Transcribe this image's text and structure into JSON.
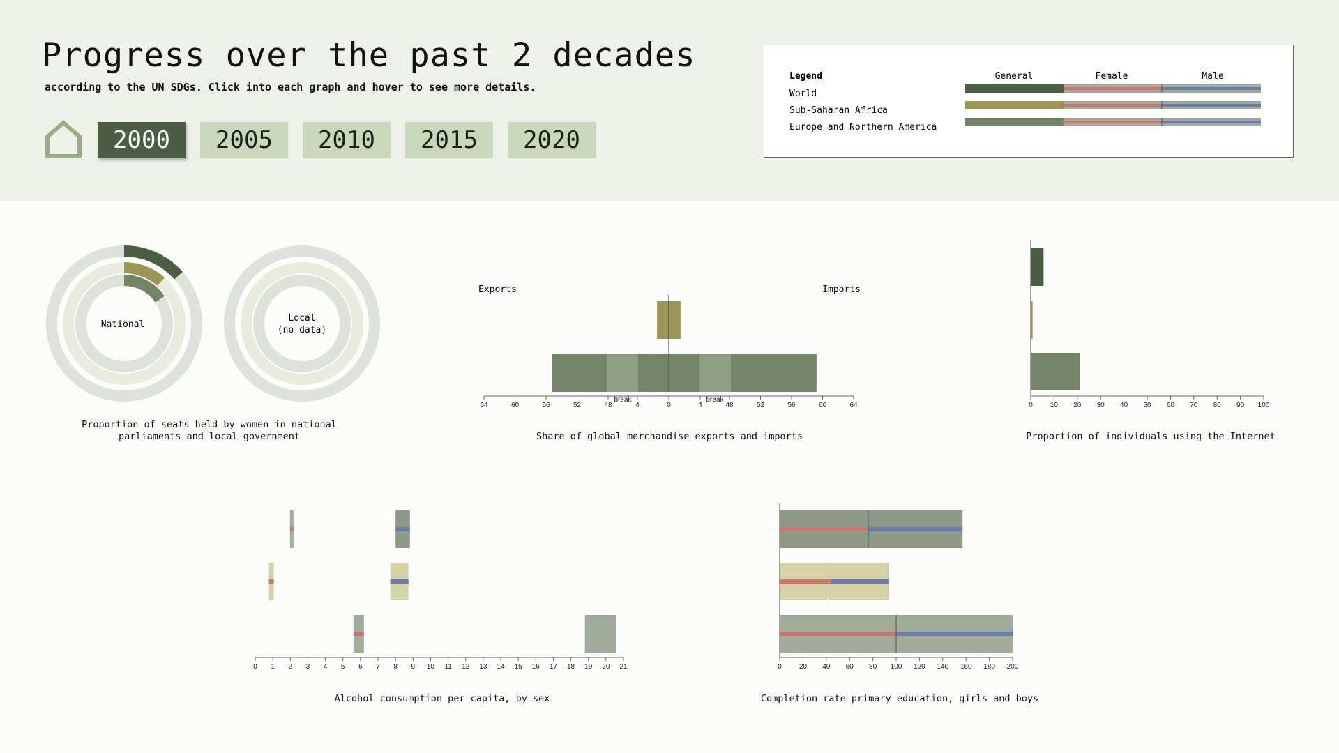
{
  "header": {
    "title": "Progress over the past 2 decades",
    "subtitle": "according to the UN SDGs. Click into each graph and hover to see more details.",
    "years": [
      "2000",
      "2005",
      "2010",
      "2015",
      "2020"
    ],
    "active_year": "2000",
    "home_icon": "home-icon"
  },
  "colors": {
    "world": "#4b5e41",
    "ssa": "#9b9556",
    "europe": "#748468",
    "female": "#cf7472",
    "male": "#6a7ca9",
    "track": "#dde2da",
    "track_inner": "#e9ebdf",
    "ssa_light": "#d7d3a8",
    "grey_bar": "#a1ac9a"
  },
  "legend": {
    "title": "Legend",
    "columns": [
      "General",
      "Female",
      "Male"
    ],
    "rows": [
      "World",
      "Sub-Saharan Africa",
      "Europe and Northern America"
    ]
  },
  "charts": {
    "parliament": {
      "caption": "Proportion of seats held by women in national parliaments and local government",
      "national_label": "National",
      "local_label_1": "Local",
      "local_label_2": "(no data)"
    },
    "trade": {
      "caption": "Share of global merchandise exports and imports",
      "left_label": "Exports",
      "right_label": "Imports",
      "break_label": "break"
    },
    "internet": {
      "caption": "Proportion of individuals using the Internet"
    },
    "alcohol": {
      "caption": "Alcohol consumption per capita, by sex"
    },
    "education": {
      "caption": "Completion rate primary education, girls and boys"
    }
  },
  "chart_data": [
    {
      "type": "pie",
      "name": "parliament-national",
      "series": [
        {
          "region": "World",
          "value": 13.5
        },
        {
          "region": "Sub-Saharan Africa",
          "value": 11.5
        },
        {
          "region": "Europe and Northern America",
          "value": 15.5
        }
      ],
      "scale_max": 100
    },
    {
      "type": "bar",
      "name": "trade",
      "x_ticks_left": [
        "64",
        "60",
        "56",
        "52",
        "48",
        "4",
        "0"
      ],
      "x_ticks_right": [
        "4",
        "48",
        "52",
        "56",
        "60",
        "64"
      ],
      "series": [
        {
          "region": "Sub-Saharan Africa",
          "exports": 1.5,
          "imports": 1.5
        },
        {
          "region": "Europe and Northern America",
          "exports": 59,
          "imports": 63
        }
      ]
    },
    {
      "type": "bar",
      "name": "internet",
      "x_ticks": [
        0,
        10,
        20,
        30,
        40,
        50,
        60,
        70,
        80,
        90,
        100
      ],
      "xlim": [
        0,
        100
      ],
      "series": [
        {
          "region": "World",
          "value": 5.5
        },
        {
          "region": "Sub-Saharan Africa",
          "value": 0.8
        },
        {
          "region": "Europe and Northern America",
          "value": 21
        }
      ]
    },
    {
      "type": "bar",
      "name": "alcohol",
      "x_ticks": [
        0,
        1,
        2,
        3,
        4,
        5,
        6,
        7,
        8,
        9,
        10,
        11,
        12,
        13,
        14,
        15,
        16,
        17,
        18,
        19,
        20,
        21
      ],
      "xlim": [
        0,
        21
      ],
      "series": [
        {
          "region": "World",
          "female": 2.1,
          "male": 8.7
        },
        {
          "region": "Sub-Saharan Africa",
          "female": 0.9,
          "male": 8.5
        },
        {
          "region": "Europe and Northern America",
          "female": 6.0,
          "general": 20.6
        }
      ]
    },
    {
      "type": "bar",
      "name": "education",
      "x_ticks": [
        0,
        20,
        40,
        60,
        80,
        100,
        120,
        140,
        160,
        180,
        200
      ],
      "xlim": [
        0,
        200
      ],
      "series": [
        {
          "region": "World",
          "girls": 76,
          "boys": 81
        },
        {
          "region": "Sub-Saharan Africa",
          "girls": 44,
          "boys": 50
        },
        {
          "region": "Europe and Northern America",
          "girls": 100,
          "boys": 100
        }
      ]
    }
  ]
}
